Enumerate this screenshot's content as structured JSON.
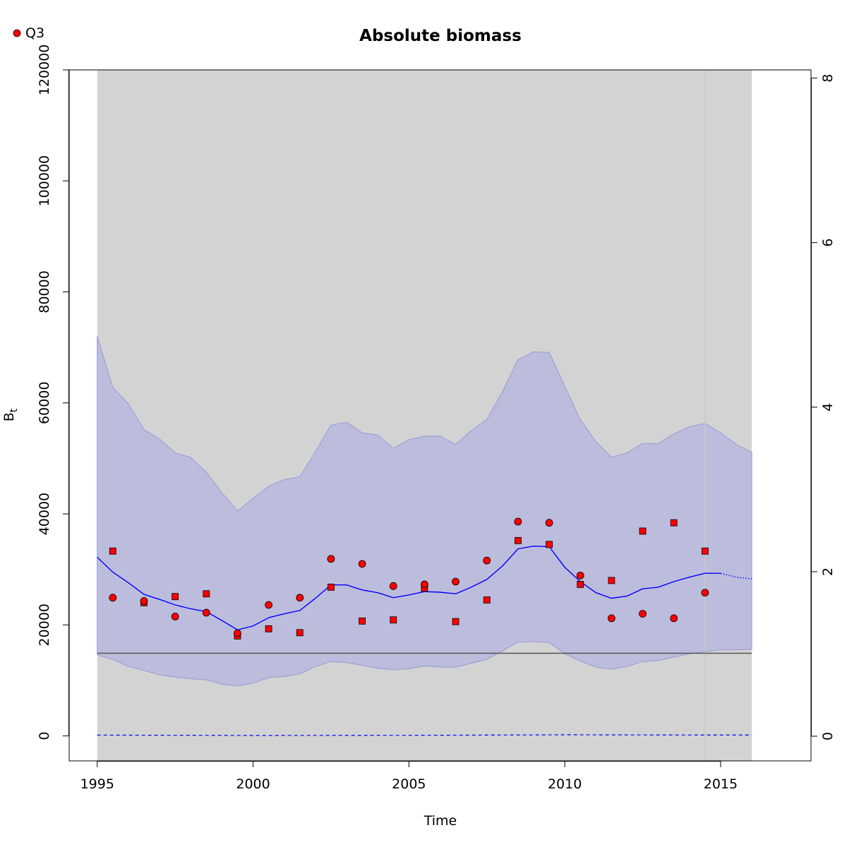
{
  "chart_data": {
    "type": "scatter",
    "title": "Absolute biomass",
    "xlabel": "Time",
    "ylabel": "B",
    "ylabel_subscript": "t",
    "legend": {
      "position": "top-left",
      "entries": [
        {
          "label": "Q3",
          "marker": "circle",
          "color": "#ff0000"
        }
      ]
    },
    "xlim": [
      1994.1,
      2017.9
    ],
    "ylim": [
      -4500,
      120000
    ],
    "xticks": [
      1995,
      2000,
      2005,
      2010,
      2015
    ],
    "yticks": [
      0,
      20000,
      40000,
      60000,
      80000,
      100000,
      120000
    ],
    "y2lim": [
      -0.3,
      8.1
    ],
    "y2ticks": [
      0,
      2,
      4,
      6,
      8
    ],
    "colors": {
      "background_band": "#d3d3d3",
      "ci_fill": "#bcbddc",
      "ci_edge": "#9898d8",
      "estimate_line": "#0000ff",
      "reference_line": "#555555",
      "marker_fill": "#ff0000",
      "vertical_line": "#c8c8c8"
    },
    "shaded_region_x": [
      1995,
      2016
    ],
    "vertical_line_x": 2014.5,
    "reference_line_y": 14900,
    "estimate": {
      "x": [
        1995,
        1995.5,
        1996,
        1996.5,
        1997,
        1997.5,
        1998,
        1998.5,
        1999,
        1999.5,
        2000,
        2000.5,
        2001,
        2001.5,
        2002,
        2002.5,
        2003,
        2003.5,
        2004,
        2004.5,
        2005,
        2005.5,
        2006,
        2006.5,
        2007,
        2007.5,
        2008,
        2008.5,
        2009,
        2009.5,
        2010,
        2010.5,
        2011,
        2011.5,
        2012,
        2012.5,
        2013,
        2013.5,
        2014,
        2014.5,
        2015
      ],
      "y": [
        32200,
        29500,
        27600,
        25500,
        24600,
        23600,
        22900,
        22400,
        20800,
        19100,
        19800,
        21300,
        22000,
        22600,
        24800,
        27200,
        27200,
        26300,
        25800,
        24900,
        25400,
        26000,
        25900,
        25600,
        26800,
        28200,
        30600,
        33700,
        34200,
        34100,
        30400,
        27800,
        25800,
        24800,
        25200,
        26500,
        26800,
        27800,
        28600,
        29300,
        29300
      ]
    },
    "forecast": {
      "x": [
        2015,
        2015.5,
        2016
      ],
      "y": [
        29300,
        28600,
        28300
      ]
    },
    "ci_upper": {
      "x": [
        1995,
        1995.5,
        1996,
        1996.5,
        1997,
        1997.5,
        1998,
        1998.5,
        1999,
        1999.5,
        2000,
        2000.5,
        2001,
        2001.5,
        2002,
        2002.5,
        2003,
        2003.5,
        2004,
        2004.5,
        2005,
        2005.5,
        2006,
        2006.5,
        2007,
        2007.5,
        2008,
        2008.5,
        2009,
        2009.5,
        2010,
        2010.5,
        2011,
        2011.5,
        2012,
        2012.5,
        2013,
        2013.5,
        2014,
        2014.5,
        2015,
        2015.5,
        2016
      ],
      "y": [
        72000,
        62800,
        59800,
        55200,
        53500,
        51000,
        50200,
        47500,
        43800,
        40500,
        42800,
        45000,
        46200,
        46700,
        51200,
        56000,
        56500,
        54600,
        54200,
        51800,
        53400,
        54000,
        54000,
        52500,
        55000,
        57000,
        62000,
        67800,
        69200,
        69100,
        63000,
        57000,
        53000,
        50200,
        51000,
        52700,
        52700,
        54400,
        55700,
        56300,
        54600,
        52500,
        51100
      ]
    },
    "ci_lower": {
      "x": [
        1995,
        1995.5,
        1996,
        1996.5,
        1997,
        1997.5,
        1998,
        1998.5,
        1999,
        1999.5,
        2000,
        2000.5,
        2001,
        2001.5,
        2002,
        2002.5,
        2003,
        2003.5,
        2004,
        2004.5,
        2005,
        2005.5,
        2006,
        2006.5,
        2007,
        2007.5,
        2008,
        2008.5,
        2009,
        2009.5,
        2010,
        2010.5,
        2011,
        2011.5,
        2012,
        2012.5,
        2013,
        2013.5,
        2014,
        2014.5,
        2015,
        2015.5,
        2016
      ],
      "y": [
        14600,
        13800,
        12500,
        11800,
        11000,
        10600,
        10300,
        10100,
        9300,
        9000,
        9500,
        10500,
        10700,
        11200,
        12500,
        13400,
        13200,
        12700,
        12200,
        11900,
        12100,
        12600,
        12400,
        12400,
        13100,
        13800,
        15300,
        16900,
        17000,
        16800,
        14800,
        13500,
        12400,
        12000,
        12500,
        13400,
        13600,
        14200,
        14800,
        15200,
        15500,
        15500,
        15600
      ]
    },
    "circle_series": {
      "x": [
        1995.5,
        1996.5,
        1997.5,
        1998.5,
        1999.5,
        2000.5,
        2001.5,
        2002.5,
        2003.5,
        2004.5,
        2005.5,
        2006.5,
        2007.5,
        2008.5,
        2009.5,
        2010.5,
        2011.5,
        2012.5,
        2013.5,
        2014.5
      ],
      "y": [
        24900,
        24300,
        21500,
        22200,
        18500,
        23600,
        24900,
        31900,
        31000,
        27000,
        27300,
        27800,
        31600,
        38600,
        38400,
        28900,
        21200,
        22000,
        21200,
        25800
      ]
    },
    "square_series": {
      "x": [
        1995.5,
        1996.5,
        1997.5,
        1998.5,
        1999.5,
        2000.5,
        2001.5,
        2002.5,
        2003.5,
        2004.5,
        2005.5,
        2006.5,
        2007.5,
        2008.5,
        2009.5,
        2010.5,
        2011.5,
        2012.5,
        2013.5,
        2014.5
      ],
      "y": [
        33300,
        24000,
        25100,
        25600,
        18000,
        19300,
        18600,
        26800,
        20700,
        20900,
        26600,
        20600,
        24500,
        35200,
        34500,
        27300,
        28000,
        36900,
        38400,
        33300
      ]
    },
    "bottom_dashed_line": {
      "x": [
        1995,
        2000,
        2005,
        2010,
        2015,
        2016
      ],
      "y": [
        150,
        80,
        100,
        200,
        150,
        150
      ]
    }
  }
}
